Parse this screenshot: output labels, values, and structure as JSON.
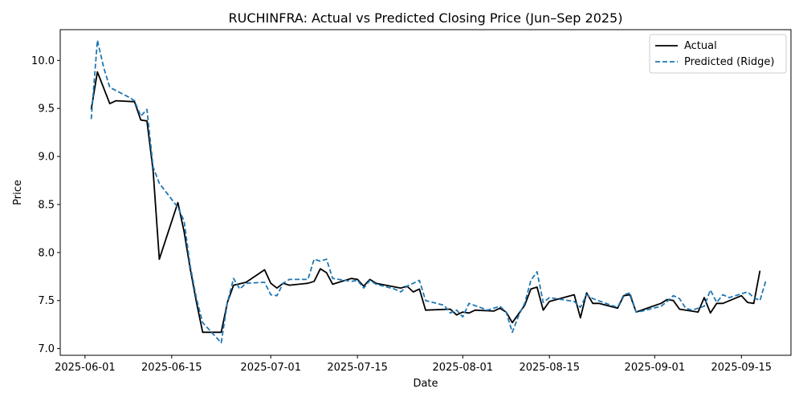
{
  "chart_data": {
    "type": "line",
    "title": "RUCHINFRA: Actual vs Predicted Closing Price (Jun–Sep 2025)",
    "xlabel": "Date",
    "ylabel": "Price",
    "legend_position": "top-right",
    "grid": false,
    "x_range": [
      "2025-05-28",
      "2025-09-23"
    ],
    "ylim": [
      6.93,
      10.32
    ],
    "x_ticks": [
      "2025-06-01",
      "2025-06-15",
      "2025-07-01",
      "2025-07-15",
      "2025-08-01",
      "2025-08-15",
      "2025-09-01",
      "2025-09-15"
    ],
    "y_ticks": [
      7.0,
      7.5,
      8.0,
      8.5,
      9.0,
      9.5,
      10.0
    ],
    "y_tick_labels": [
      "7.0",
      "7.5",
      "8.0",
      "8.5",
      "9.0",
      "9.5",
      "10.0"
    ],
    "series": [
      {
        "name": "Actual",
        "color": "#000000",
        "style": "solid",
        "points": [
          [
            "2025-06-02",
            9.49
          ],
          [
            "2025-06-03",
            9.88
          ],
          [
            "2025-06-05",
            9.55
          ],
          [
            "2025-06-06",
            9.58
          ],
          [
            "2025-06-09",
            9.57
          ],
          [
            "2025-06-10",
            9.38
          ],
          [
            "2025-06-11",
            9.37
          ],
          [
            "2025-06-12",
            8.85
          ],
          [
            "2025-06-13",
            7.93
          ],
          [
            "2025-06-16",
            8.52
          ],
          [
            "2025-06-17",
            8.22
          ],
          [
            "2025-06-18",
            7.83
          ],
          [
            "2025-06-19",
            7.48
          ],
          [
            "2025-06-20",
            7.17
          ],
          [
            "2025-06-23",
            7.17
          ],
          [
            "2025-06-24",
            7.48
          ],
          [
            "2025-06-25",
            7.66
          ],
          [
            "2025-06-27",
            7.69
          ],
          [
            "2025-06-30",
            7.82
          ],
          [
            "2025-07-01",
            7.68
          ],
          [
            "2025-07-02",
            7.63
          ],
          [
            "2025-07-03",
            7.68
          ],
          [
            "2025-07-04",
            7.66
          ],
          [
            "2025-07-07",
            7.68
          ],
          [
            "2025-07-08",
            7.7
          ],
          [
            "2025-07-09",
            7.83
          ],
          [
            "2025-07-10",
            7.79
          ],
          [
            "2025-07-11",
            7.67
          ],
          [
            "2025-07-14",
            7.73
          ],
          [
            "2025-07-15",
            7.72
          ],
          [
            "2025-07-16",
            7.65
          ],
          [
            "2025-07-17",
            7.72
          ],
          [
            "2025-07-18",
            7.68
          ],
          [
            "2025-07-22",
            7.63
          ],
          [
            "2025-07-23",
            7.65
          ],
          [
            "2025-07-24",
            7.59
          ],
          [
            "2025-07-25",
            7.62
          ],
          [
            "2025-07-26",
            7.4
          ],
          [
            "2025-07-30",
            7.41
          ],
          [
            "2025-07-31",
            7.35
          ],
          [
            "2025-08-01",
            7.38
          ],
          [
            "2025-08-02",
            7.37
          ],
          [
            "2025-08-03",
            7.4
          ],
          [
            "2025-08-06",
            7.39
          ],
          [
            "2025-08-07",
            7.42
          ],
          [
            "2025-08-08",
            7.38
          ],
          [
            "2025-08-09",
            7.27
          ],
          [
            "2025-08-11",
            7.45
          ],
          [
            "2025-08-12",
            7.62
          ],
          [
            "2025-08-13",
            7.64
          ],
          [
            "2025-08-14",
            7.4
          ],
          [
            "2025-08-15",
            7.49
          ],
          [
            "2025-08-19",
            7.56
          ],
          [
            "2025-08-20",
            7.32
          ],
          [
            "2025-08-21",
            7.58
          ],
          [
            "2025-08-22",
            7.47
          ],
          [
            "2025-08-23",
            7.47
          ],
          [
            "2025-08-26",
            7.42
          ],
          [
            "2025-08-27",
            7.55
          ],
          [
            "2025-08-28",
            7.56
          ],
          [
            "2025-08-29",
            7.38
          ],
          [
            "2025-09-02",
            7.47
          ],
          [
            "2025-09-03",
            7.51
          ],
          [
            "2025-09-04",
            7.5
          ],
          [
            "2025-09-05",
            7.41
          ],
          [
            "2025-09-08",
            7.38
          ],
          [
            "2025-09-09",
            7.53
          ],
          [
            "2025-09-10",
            7.37
          ],
          [
            "2025-09-11",
            7.47
          ],
          [
            "2025-09-12",
            7.47
          ],
          [
            "2025-09-15",
            7.55
          ],
          [
            "2025-09-16",
            7.48
          ],
          [
            "2025-09-17",
            7.47
          ],
          [
            "2025-09-18",
            7.81
          ]
        ]
      },
      {
        "name": "Predicted (Ridge)",
        "color": "#1f77b4",
        "style": "dashed",
        "points": [
          [
            "2025-06-02",
            9.39
          ],
          [
            "2025-06-03",
            10.21
          ],
          [
            "2025-06-04",
            9.93
          ],
          [
            "2025-06-05",
            9.72
          ],
          [
            "2025-06-08",
            9.62
          ],
          [
            "2025-06-09",
            9.58
          ],
          [
            "2025-06-10",
            9.42
          ],
          [
            "2025-06-11",
            9.49
          ],
          [
            "2025-06-12",
            8.89
          ],
          [
            "2025-06-13",
            8.72
          ],
          [
            "2025-06-16",
            8.47
          ],
          [
            "2025-06-17",
            8.33
          ],
          [
            "2025-06-18",
            7.86
          ],
          [
            "2025-06-19",
            7.52
          ],
          [
            "2025-06-20",
            7.27
          ],
          [
            "2025-06-23",
            7.06
          ],
          [
            "2025-06-24",
            7.48
          ],
          [
            "2025-06-25",
            7.73
          ],
          [
            "2025-06-26",
            7.62
          ],
          [
            "2025-06-27",
            7.68
          ],
          [
            "2025-06-30",
            7.69
          ],
          [
            "2025-07-01",
            7.56
          ],
          [
            "2025-07-02",
            7.55
          ],
          [
            "2025-07-03",
            7.68
          ],
          [
            "2025-07-04",
            7.72
          ],
          [
            "2025-07-07",
            7.72
          ],
          [
            "2025-07-08",
            7.93
          ],
          [
            "2025-07-09",
            7.91
          ],
          [
            "2025-07-10",
            7.93
          ],
          [
            "2025-07-11",
            7.73
          ],
          [
            "2025-07-14",
            7.7
          ],
          [
            "2025-07-15",
            7.71
          ],
          [
            "2025-07-16",
            7.63
          ],
          [
            "2025-07-17",
            7.71
          ],
          [
            "2025-07-18",
            7.67
          ],
          [
            "2025-07-21",
            7.62
          ],
          [
            "2025-07-22",
            7.59
          ],
          [
            "2025-07-23",
            7.65
          ],
          [
            "2025-07-25",
            7.71
          ],
          [
            "2025-07-26",
            7.5
          ],
          [
            "2025-07-29",
            7.45
          ],
          [
            "2025-07-30",
            7.37
          ],
          [
            "2025-07-31",
            7.4
          ],
          [
            "2025-08-01",
            7.33
          ],
          [
            "2025-08-02",
            7.47
          ],
          [
            "2025-08-05",
            7.4
          ],
          [
            "2025-08-06",
            7.42
          ],
          [
            "2025-08-07",
            7.44
          ],
          [
            "2025-08-08",
            7.38
          ],
          [
            "2025-08-09",
            7.17
          ],
          [
            "2025-08-10",
            7.34
          ],
          [
            "2025-08-11",
            7.47
          ],
          [
            "2025-08-12",
            7.71
          ],
          [
            "2025-08-13",
            7.8
          ],
          [
            "2025-08-14",
            7.48
          ],
          [
            "2025-08-15",
            7.53
          ],
          [
            "2025-08-19",
            7.49
          ],
          [
            "2025-08-20",
            7.43
          ],
          [
            "2025-08-21",
            7.56
          ],
          [
            "2025-08-22",
            7.52
          ],
          [
            "2025-08-25",
            7.45
          ],
          [
            "2025-08-26",
            7.43
          ],
          [
            "2025-08-27",
            7.56
          ],
          [
            "2025-08-28",
            7.58
          ],
          [
            "2025-08-29",
            7.38
          ],
          [
            "2025-08-30",
            7.39
          ],
          [
            "2025-09-02",
            7.44
          ],
          [
            "2025-09-03",
            7.49
          ],
          [
            "2025-09-04",
            7.55
          ],
          [
            "2025-09-05",
            7.52
          ],
          [
            "2025-09-06",
            7.42
          ],
          [
            "2025-09-07",
            7.4
          ],
          [
            "2025-09-09",
            7.44
          ],
          [
            "2025-09-10",
            7.61
          ],
          [
            "2025-09-11",
            7.48
          ],
          [
            "2025-09-12",
            7.56
          ],
          [
            "2025-09-13",
            7.53
          ],
          [
            "2025-09-16",
            7.59
          ],
          [
            "2025-09-17",
            7.53
          ],
          [
            "2025-09-18",
            7.5
          ],
          [
            "2025-09-19",
            7.72
          ]
        ]
      }
    ]
  }
}
